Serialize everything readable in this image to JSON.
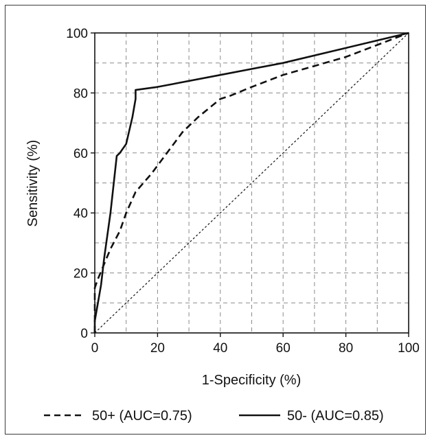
{
  "chart_data": {
    "type": "line",
    "title": "",
    "xlabel": "1-Specificity (%)",
    "ylabel": "Sensitivity (%)",
    "xlim": [
      0,
      100
    ],
    "ylim": [
      0,
      100
    ],
    "x_ticks": [
      "0",
      "20",
      "40",
      "60",
      "80",
      "100"
    ],
    "y_ticks": [
      "0",
      "20",
      "40",
      "60",
      "80",
      "100"
    ],
    "grid": true,
    "legend_position": "bottom",
    "series": [
      {
        "name": "50+ (AUC=0.75)",
        "style": "dashed",
        "x": [
          0,
          0,
          1,
          3,
          5,
          8,
          10,
          13,
          18,
          23,
          28,
          33,
          40,
          43,
          50,
          60,
          70,
          80,
          90,
          100
        ],
        "y": [
          0,
          15,
          18,
          23,
          28,
          34,
          40,
          47,
          53,
          60,
          67,
          72,
          78,
          79,
          82,
          86,
          89,
          92,
          96,
          100
        ]
      },
      {
        "name": "50- (AUC=0.85)",
        "style": "solid",
        "x": [
          0,
          0,
          1,
          2,
          3,
          5,
          7,
          8,
          10,
          12,
          13,
          13,
          20,
          40,
          60,
          80,
          100
        ],
        "y": [
          0,
          4,
          10,
          16,
          25,
          40,
          59,
          60,
          63,
          72,
          78,
          81,
          82,
          86,
          90,
          95,
          100
        ]
      },
      {
        "name": "",
        "style": "dotted",
        "x": [
          0,
          100
        ],
        "y": [
          0,
          100
        ]
      }
    ]
  }
}
